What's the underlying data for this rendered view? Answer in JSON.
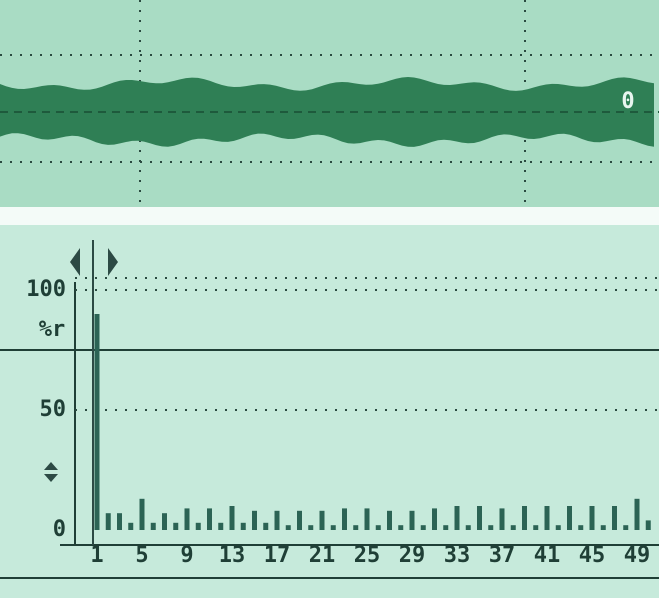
{
  "waveform_label": "0",
  "chart_data": {
    "type": "bar",
    "ylabel": "%r",
    "categories": [
      1,
      null,
      null,
      null,
      5,
      null,
      null,
      null,
      9,
      null,
      null,
      null,
      13,
      null,
      null,
      null,
      17,
      null,
      null,
      null,
      21,
      null,
      null,
      null,
      25,
      null,
      null,
      null,
      29,
      null,
      null,
      null,
      33,
      null,
      null,
      null,
      37,
      null,
      null,
      null,
      41,
      null,
      null,
      null,
      45,
      null,
      null,
      null,
      49,
      null
    ],
    "values": [
      90,
      7,
      7,
      3,
      13,
      3,
      7,
      3,
      9,
      3,
      9,
      3,
      10,
      3,
      8,
      3,
      8,
      2,
      8,
      2,
      8,
      2,
      9,
      2,
      9,
      2,
      8,
      2,
      8,
      2,
      9,
      2,
      10,
      2,
      10,
      2,
      9,
      2,
      10,
      2,
      10,
      2,
      10,
      2,
      10,
      2,
      10,
      2,
      13,
      4
    ],
    "color": "#2c6455",
    "ylim": [
      0,
      100
    ],
    "yticks": [
      0,
      50,
      100
    ],
    "grid": true
  }
}
